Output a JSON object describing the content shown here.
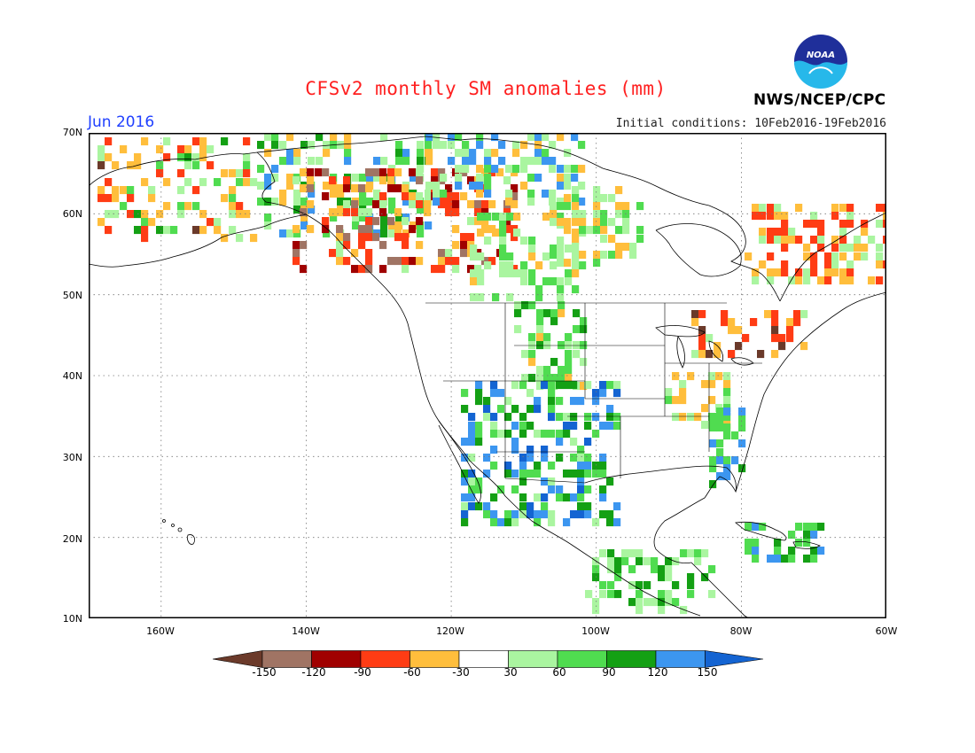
{
  "header": {
    "title": "CFSv2 monthly SM anomalies (mm)",
    "period": "Jun 2016",
    "initial_conditions": "Initial conditions: 10Feb2016-19Feb2016",
    "agency": "NWS/NCEP/CPC",
    "logo_text": "NOAA"
  },
  "map": {
    "lat_ticks": [
      "70N",
      "60N",
      "50N",
      "40N",
      "30N",
      "20N",
      "10N"
    ],
    "lon_ticks": [
      "160W",
      "140W",
      "120W",
      "100W",
      "80W",
      "60W"
    ],
    "extent": {
      "lon": [
        -170,
        -60
      ],
      "lat": [
        10,
        70
      ]
    },
    "gridlines": "dotted"
  },
  "legend": {
    "units": "mm",
    "tick_labels": [
      "-150",
      "-120",
      "-90",
      "-60",
      "-30",
      "30",
      "60",
      "90",
      "120",
      "150"
    ],
    "bins": [
      {
        "range": "< -150",
        "color": "#6b3a2a"
      },
      {
        "range": "-150 to -120",
        "color": "#a07464"
      },
      {
        "range": "-120 to -90",
        "color": "#a00000"
      },
      {
        "range": "-90 to -60",
        "color": "#ff3c14"
      },
      {
        "range": "-60 to -30",
        "color": "#ffbe3c"
      },
      {
        "range": "-30 to 30",
        "color": "#ffffff"
      },
      {
        "range": "30 to 60",
        "color": "#aaf5a0"
      },
      {
        "range": "60 to 90",
        "color": "#50dc50"
      },
      {
        "range": "90 to 120",
        "color": "#14a014"
      },
      {
        "range": "120 to 150",
        "color": "#3c96f0"
      },
      {
        "range": "> 150",
        "color": "#1464d2"
      }
    ]
  }
}
